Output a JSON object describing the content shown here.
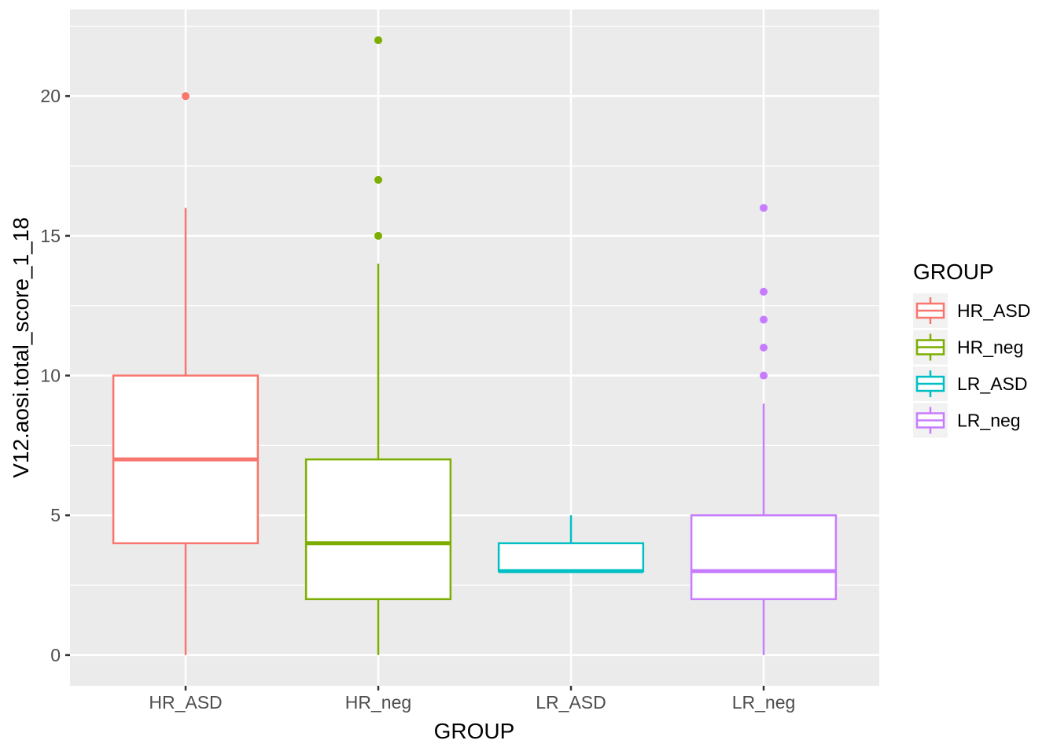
{
  "figure": {
    "background": "#FFFFFF",
    "panel_background": "#EBEBEB",
    "grid_color": "#FFFFFF",
    "tick_mark_color": "#333333",
    "axis_text_color": "#4D4D4D",
    "title_color": "#000000",
    "legend_key_background": "#F2F2F2"
  },
  "chart_data": {
    "type": "boxplot",
    "title": "",
    "xlabel": "GROUP",
    "ylabel": "V12.aosi.total_score_1_18",
    "categories": [
      "HR_ASD",
      "HR_neg",
      "LR_ASD",
      "LR_neg"
    ],
    "y_ticks": [
      0,
      5,
      10,
      15,
      20
    ],
    "y_tick_labels": [
      "0",
      "5",
      "10",
      "15",
      "20"
    ],
    "ylim": [
      -1.1,
      23.1
    ],
    "grid": "horizontal major+minor, vertical major at categories",
    "legend_position": "right",
    "legend_title": "GROUP",
    "series": [
      {
        "name": "HR_ASD",
        "color": "#F8766D",
        "whisker_low": 0,
        "q1": 4,
        "median": 7,
        "q3": 10,
        "whisker_high": 16,
        "outliers": [
          20
        ]
      },
      {
        "name": "HR_neg",
        "color": "#7CAE00",
        "whisker_low": 0,
        "q1": 2,
        "median": 4,
        "q3": 7,
        "whisker_high": 14,
        "outliers": [
          15,
          17,
          22
        ]
      },
      {
        "name": "LR_ASD",
        "color": "#00BFC4",
        "whisker_low": 3,
        "q1": 3,
        "median": 3,
        "q3": 4,
        "whisker_high": 5,
        "outliers": []
      },
      {
        "name": "LR_neg",
        "color": "#C77CFF",
        "whisker_low": 0,
        "q1": 2,
        "median": 3,
        "q3": 5,
        "whisker_high": 9,
        "outliers": [
          10,
          11,
          12,
          13,
          16
        ]
      }
    ]
  }
}
